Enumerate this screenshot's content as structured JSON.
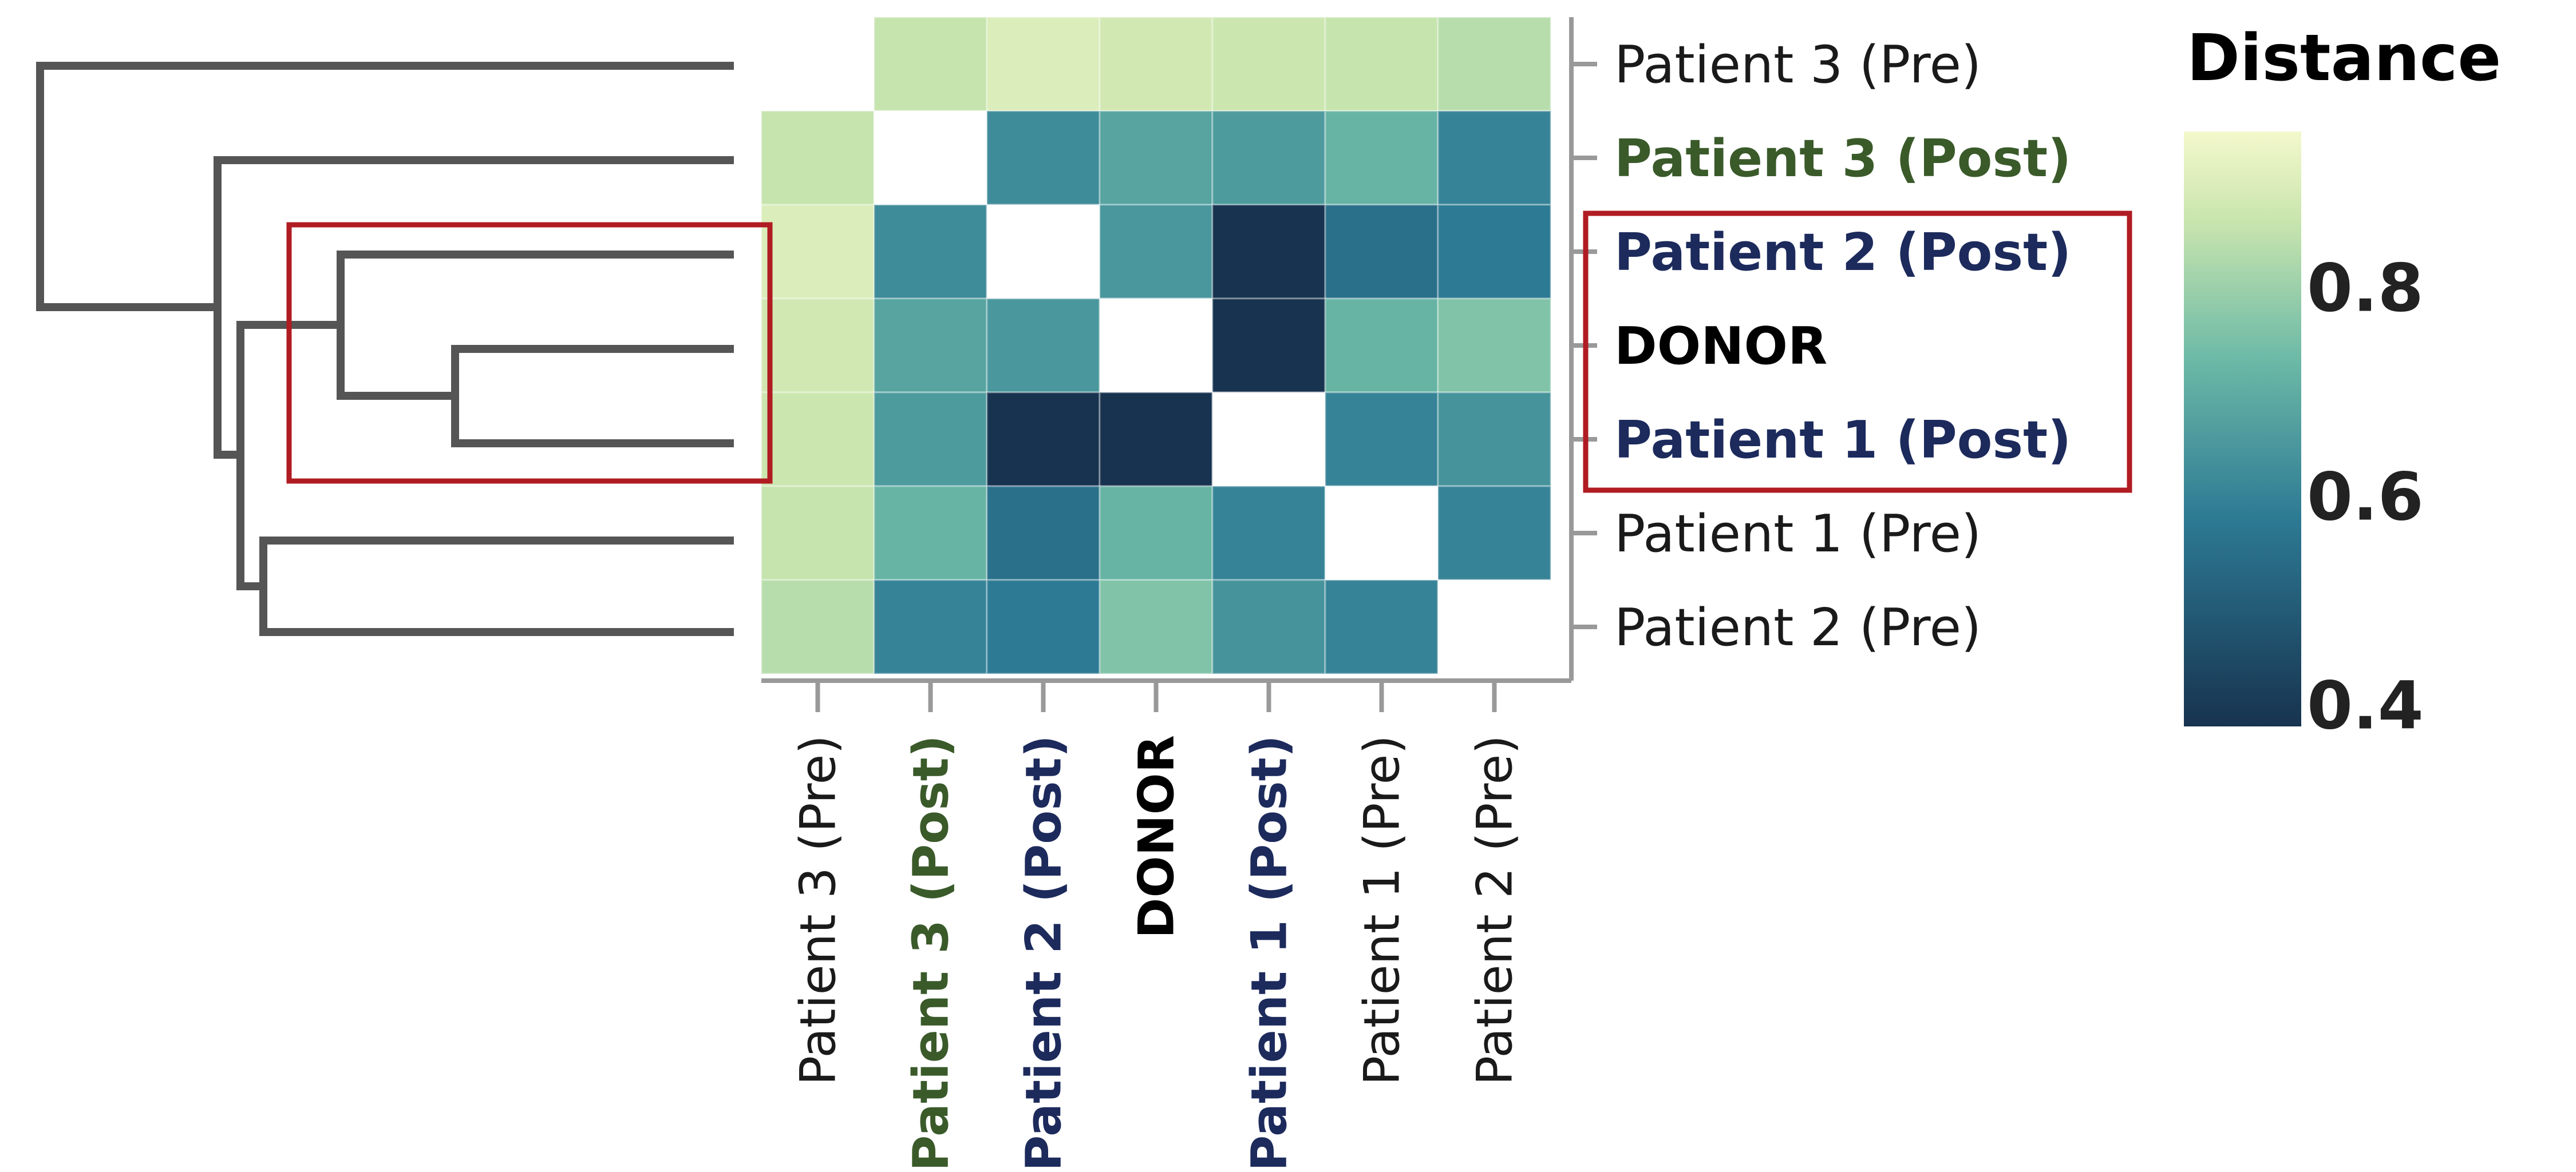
{
  "chart_data": {
    "type": "heatmap",
    "title": "",
    "xlabel": "",
    "ylabel": "",
    "row_labels": [
      "Patient 3 (Pre)",
      "Patient 3 (Post)",
      "Patient 2 (Post)",
      "DONOR",
      "Patient 1 (Post)",
      "Patient 1 (Pre)",
      "Patient 2 (Pre)"
    ],
    "col_labels": [
      "Patient 3 (Pre)",
      "Patient 3 (Post)",
      "Patient 2 (Post)",
      "DONOR",
      "Patient 1 (Post)",
      "Patient 1 (Pre)",
      "Patient 2 (Pre)"
    ],
    "label_styles": [
      "normal",
      "green-bold",
      "navy-bold",
      "black-bold",
      "navy-bold",
      "normal",
      "normal"
    ],
    "label_colors": {
      "normal": "#1a1a1a",
      "green-bold": "#3a5a2a",
      "navy-bold": "#1c2a5c",
      "black-bold": "#000000"
    },
    "values": [
      [
        null,
        0.86,
        0.9,
        0.88,
        0.87,
        0.86,
        0.84
      ],
      [
        0.86,
        null,
        0.62,
        0.68,
        0.66,
        0.72,
        0.6
      ],
      [
        0.9,
        0.62,
        null,
        0.65,
        0.38,
        0.55,
        0.58
      ],
      [
        0.88,
        0.68,
        0.65,
        null,
        0.35,
        0.72,
        0.76
      ],
      [
        0.87,
        0.66,
        0.38,
        0.35,
        null,
        0.6,
        0.64
      ],
      [
        0.86,
        0.72,
        0.55,
        0.72,
        0.6,
        null,
        0.6
      ],
      [
        0.84,
        0.6,
        0.58,
        0.76,
        0.64,
        0.6,
        null
      ]
    ],
    "lower_triangle_shown": true,
    "hidden_cells": "row 0 (Patient 3 Pre) lower-left half is cropped",
    "colorbar": {
      "title": "Distance",
      "ticks": [
        0.8,
        0.6,
        0.4
      ],
      "range": [
        0.38,
        0.95
      ]
    },
    "colors": {
      "low": "#17334f",
      "mid": "#3f9aa8",
      "high": "#f4f8cc",
      "highlight_box": "#b01c22",
      "tree": "#555555"
    },
    "dendrogram": "rows clustered; highlighted clade groups Patient 2 (Post), DONOR, Patient 1 (Post)",
    "highlighted_rows": [
      "Patient 2 (Post)",
      "DONOR",
      "Patient 1 (Post)"
    ]
  }
}
